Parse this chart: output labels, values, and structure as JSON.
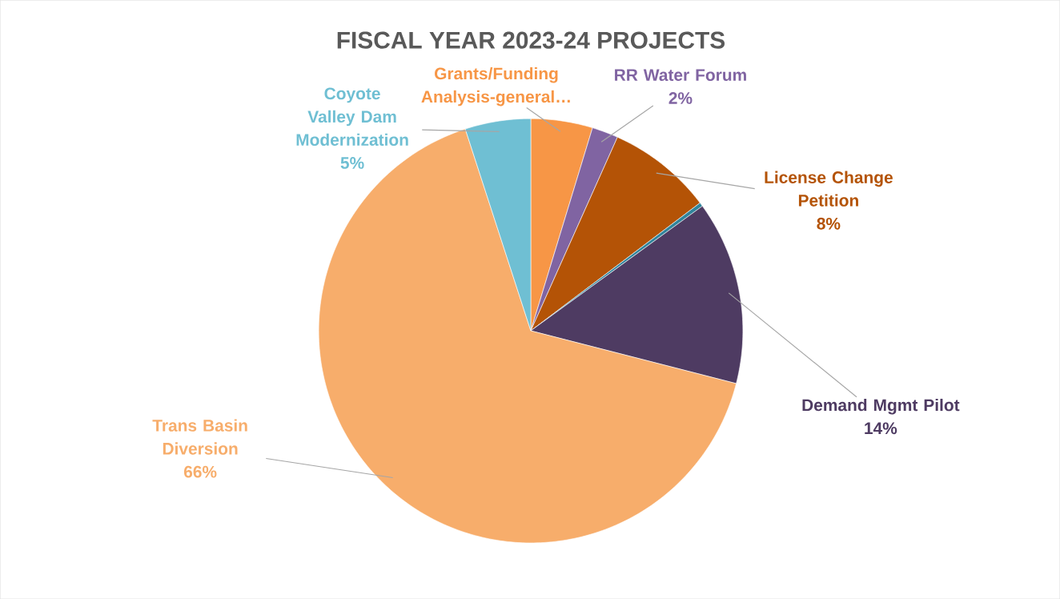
{
  "chart_data": {
    "type": "pie",
    "title": "FISCAL YEAR 2023-24 PROJECTS",
    "categories": [
      "Grants/Funding Analysis-general…",
      "RR Water Forum",
      "License Change Petition",
      null,
      "Demand Mgmt Pilot",
      "Trans Basin Diversion",
      "Coyote Valley Dam Modernization"
    ],
    "values": [
      4.7,
      2,
      8,
      0.3,
      14,
      66,
      5
    ],
    "value_labels": [
      null,
      "2%",
      "8%",
      null,
      "14%",
      "66%",
      "5%"
    ],
    "colors": [
      "#f79646",
      "#8064a2",
      "#b45306",
      "#31859c",
      "#4e3b62",
      "#f7ad6b",
      "#6fbfd3"
    ],
    "legend": false
  }
}
